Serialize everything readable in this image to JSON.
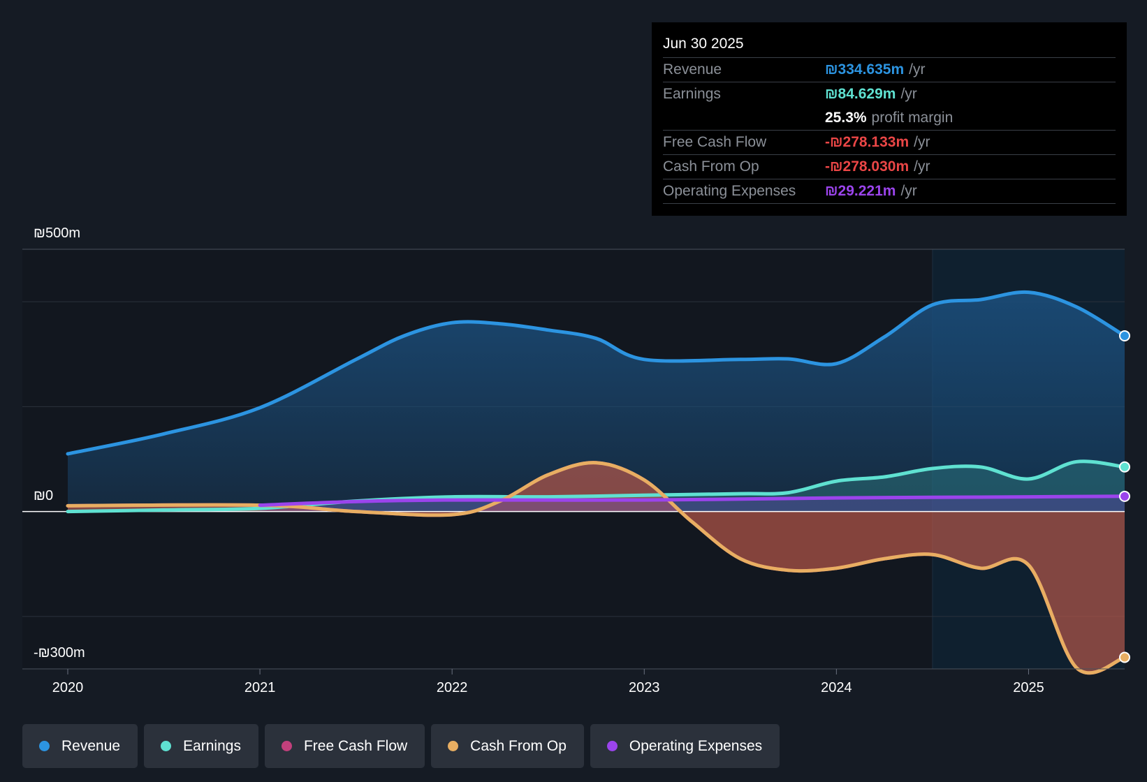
{
  "tooltip": {
    "date": "Jun 30 2025",
    "rows": [
      {
        "label": "Revenue",
        "value": "₪334.635m",
        "unit": "/yr",
        "color": "#2c94e1"
      },
      {
        "label": "Earnings",
        "value": "₪84.629m",
        "unit": "/yr",
        "color": "#5fe1d1"
      },
      {
        "label": "",
        "value": "25.3%",
        "unit": "profit margin",
        "color": "#ffffff"
      },
      {
        "label": "Free Cash Flow",
        "value": "-₪278.133m",
        "unit": "/yr",
        "color": "#ea4646"
      },
      {
        "label": "Cash From Op",
        "value": "-₪278.030m",
        "unit": "/yr",
        "color": "#ea4646"
      },
      {
        "label": "Operating Expenses",
        "value": "₪29.221m",
        "unit": "/yr",
        "color": "#9b44ec"
      }
    ]
  },
  "legend": [
    {
      "label": "Revenue",
      "color": "#2c94e1"
    },
    {
      "label": "Earnings",
      "color": "#5fe1d1"
    },
    {
      "label": "Free Cash Flow",
      "color": "#c2407c"
    },
    {
      "label": "Cash From Op",
      "color": "#e8ae62"
    },
    {
      "label": "Operating Expenses",
      "color": "#9b44ec"
    }
  ],
  "chart_data": {
    "type": "area",
    "title": "",
    "xlabel": "",
    "ylabel": "",
    "y_tick_labels": {
      "top": "₪500m",
      "zero": "₪0",
      "bottom": "-₪300m"
    },
    "ylim": [
      -300,
      500
    ],
    "xlim": [
      2020,
      2025.5
    ],
    "x_ticks": [
      2020,
      2021,
      2022,
      2023,
      2024,
      2025
    ],
    "x_tick_labels": [
      "2020",
      "2021",
      "2022",
      "2023",
      "2024",
      "2025"
    ],
    "gridlines": [
      500,
      400,
      200,
      0,
      -200,
      -300
    ],
    "highlight_from": 2024.5,
    "series": [
      {
        "name": "Revenue",
        "color": "#2c94e1",
        "points": [
          [
            2020,
            110
          ],
          [
            2020.5,
            148
          ],
          [
            2021,
            198
          ],
          [
            2021.5,
            290
          ],
          [
            2021.75,
            335
          ],
          [
            2022,
            360
          ],
          [
            2022.25,
            358
          ],
          [
            2022.5,
            346
          ],
          [
            2022.75,
            330
          ],
          [
            2023,
            290
          ],
          [
            2023.5,
            290
          ],
          [
            2023.75,
            291
          ],
          [
            2024,
            282
          ],
          [
            2024.25,
            333
          ],
          [
            2024.5,
            394
          ],
          [
            2024.75,
            404
          ],
          [
            2025,
            418
          ],
          [
            2025.25,
            390
          ],
          [
            2025.5,
            335
          ]
        ]
      },
      {
        "name": "Earnings",
        "color": "#5fe1d1",
        "points": [
          [
            2020,
            0
          ],
          [
            2020.5,
            3
          ],
          [
            2021,
            6
          ],
          [
            2021.5,
            20
          ],
          [
            2022,
            28
          ],
          [
            2022.5,
            28
          ],
          [
            2023,
            31
          ],
          [
            2023.5,
            34
          ],
          [
            2023.75,
            36
          ],
          [
            2024,
            58
          ],
          [
            2024.25,
            66
          ],
          [
            2024.5,
            82
          ],
          [
            2024.75,
            85
          ],
          [
            2025,
            62
          ],
          [
            2025.25,
            95
          ],
          [
            2025.5,
            85
          ]
        ]
      },
      {
        "name": "Free Cash Flow",
        "color": "#c2407c",
        "points": [
          [
            2020,
            11
          ],
          [
            2021,
            12
          ],
          [
            2021.5,
            0
          ],
          [
            2022,
            -6
          ],
          [
            2022.25,
            20
          ],
          [
            2022.5,
            70
          ],
          [
            2022.75,
            93
          ],
          [
            2023,
            60
          ],
          [
            2023.25,
            -20
          ],
          [
            2023.5,
            -90
          ],
          [
            2023.75,
            -112
          ],
          [
            2024,
            -108
          ],
          [
            2024.25,
            -90
          ],
          [
            2024.5,
            -82
          ],
          [
            2024.75,
            -108
          ],
          [
            2025,
            -102
          ],
          [
            2025.25,
            -298
          ],
          [
            2025.5,
            -278
          ]
        ]
      },
      {
        "name": "Cash From Op",
        "color": "#e8ae62",
        "points": [
          [
            2020,
            11
          ],
          [
            2021,
            12
          ],
          [
            2021.5,
            0
          ],
          [
            2022,
            -6
          ],
          [
            2022.25,
            20
          ],
          [
            2022.5,
            70
          ],
          [
            2022.75,
            93
          ],
          [
            2023,
            60
          ],
          [
            2023.25,
            -20
          ],
          [
            2023.5,
            -90
          ],
          [
            2023.75,
            -112
          ],
          [
            2024,
            -108
          ],
          [
            2024.25,
            -90
          ],
          [
            2024.5,
            -82
          ],
          [
            2024.75,
            -108
          ],
          [
            2025,
            -102
          ],
          [
            2025.25,
            -298
          ],
          [
            2025.5,
            -278
          ]
        ]
      },
      {
        "name": "Operating Expenses",
        "color": "#9b44ec",
        "points": [
          [
            2021,
            12
          ],
          [
            2021.5,
            19
          ],
          [
            2022,
            22
          ],
          [
            2023,
            22
          ],
          [
            2024,
            26
          ],
          [
            2024.5,
            27
          ],
          [
            2025,
            28
          ],
          [
            2025.5,
            29
          ]
        ]
      }
    ]
  }
}
